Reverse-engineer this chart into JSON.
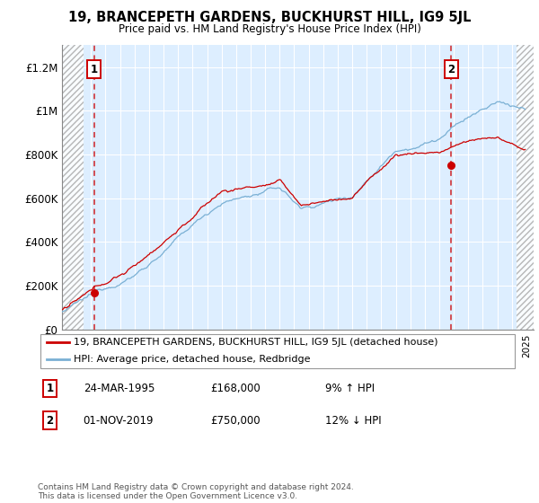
{
  "title": "19, BRANCEPETH GARDENS, BUCKHURST HILL, IG9 5JL",
  "subtitle": "Price paid vs. HM Land Registry's House Price Index (HPI)",
  "legend_line1": "19, BRANCEPETH GARDENS, BUCKHURST HILL, IG9 5JL (detached house)",
  "legend_line2": "HPI: Average price, detached house, Redbridge",
  "annotation1_label": "1",
  "annotation1_date": "24-MAR-1995",
  "annotation1_price": "£168,000",
  "annotation1_hpi": "9% ↑ HPI",
  "annotation2_label": "2",
  "annotation2_date": "01-NOV-2019",
  "annotation2_price": "£750,000",
  "annotation2_hpi": "12% ↓ HPI",
  "footer": "Contains HM Land Registry data © Crown copyright and database right 2024.\nThis data is licensed under the Open Government Licence v3.0.",
  "price_color": "#cc0000",
  "hpi_color": "#7ab0d4",
  "plot_bg_color": "#ddeeff",
  "hatch_color": "#bbbbbb",
  "ylim": [
    0,
    1300000
  ],
  "yticks": [
    0,
    200000,
    400000,
    600000,
    800000,
    1000000,
    1200000
  ],
  "ytick_labels": [
    "£0",
    "£200K",
    "£400K",
    "£600K",
    "£800K",
    "£1M",
    "£1.2M"
  ],
  "sale1_year": 1995.22,
  "sale1_price": 168000,
  "sale2_year": 2019.83,
  "sale2_price": 750000,
  "xmin": 1993.0,
  "xmax": 2025.5,
  "hatch_left_end": 1994.5,
  "hatch_right_start": 2024.3
}
